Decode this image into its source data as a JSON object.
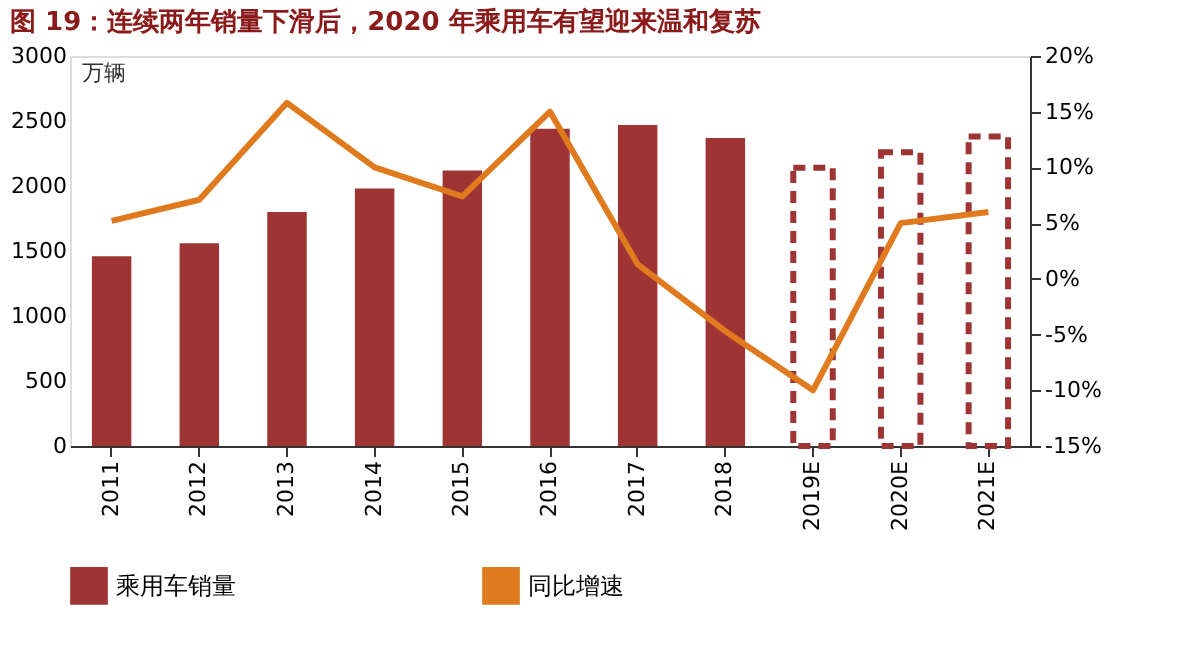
{
  "chart_data": {
    "type": "bar",
    "title": "图 19：连续两年销量下滑后，2020 年乘用车有望迎来温和复苏",
    "ylabel": "万辆",
    "categories": [
      "2011",
      "2012",
      "2013",
      "2014",
      "2015",
      "2016",
      "2017",
      "2018",
      "2019E",
      "2020E",
      "2021E"
    ],
    "series": [
      {
        "name": "乘用车销量",
        "color": "#9e3434",
        "values": [
          1460,
          1560,
          1800,
          1980,
          2120,
          2440,
          2470,
          2370,
          null,
          null,
          null
        ]
      },
      {
        "color": "#9e3434",
        "line_style": "dashed",
        "values": [
          null,
          null,
          null,
          null,
          null,
          null,
          null,
          null,
          2140,
          2260,
          2380
        ]
      },
      {
        "name": "同比增速",
        "type": "line",
        "axis": "y2",
        "color": "#e07a1f",
        "values": [
          5.2,
          7.1,
          15.8,
          10,
          7.4,
          15,
          1.3,
          -4.7,
          -10,
          5,
          6
        ]
      }
    ],
    "ylim": [
      0,
      3000
    ],
    "yticks": [
      0,
      500,
      1000,
      1500,
      2000,
      2500,
      3000
    ],
    "y2lim": [
      -15,
      20
    ],
    "y2ticks": [
      {
        "value": -15,
        "label": "-15%"
      },
      {
        "value": -10,
        "label": "-10%"
      },
      {
        "value": -5,
        "label": "-5%"
      },
      {
        "value": 0,
        "label": "0%"
      },
      {
        "value": 5,
        "label": "5%"
      },
      {
        "value": 10,
        "label": "10%"
      },
      {
        "value": 15,
        "label": "15%"
      },
      {
        "value": 20,
        "label": "20%"
      }
    ],
    "grid": false,
    "legend": "bottom"
  }
}
